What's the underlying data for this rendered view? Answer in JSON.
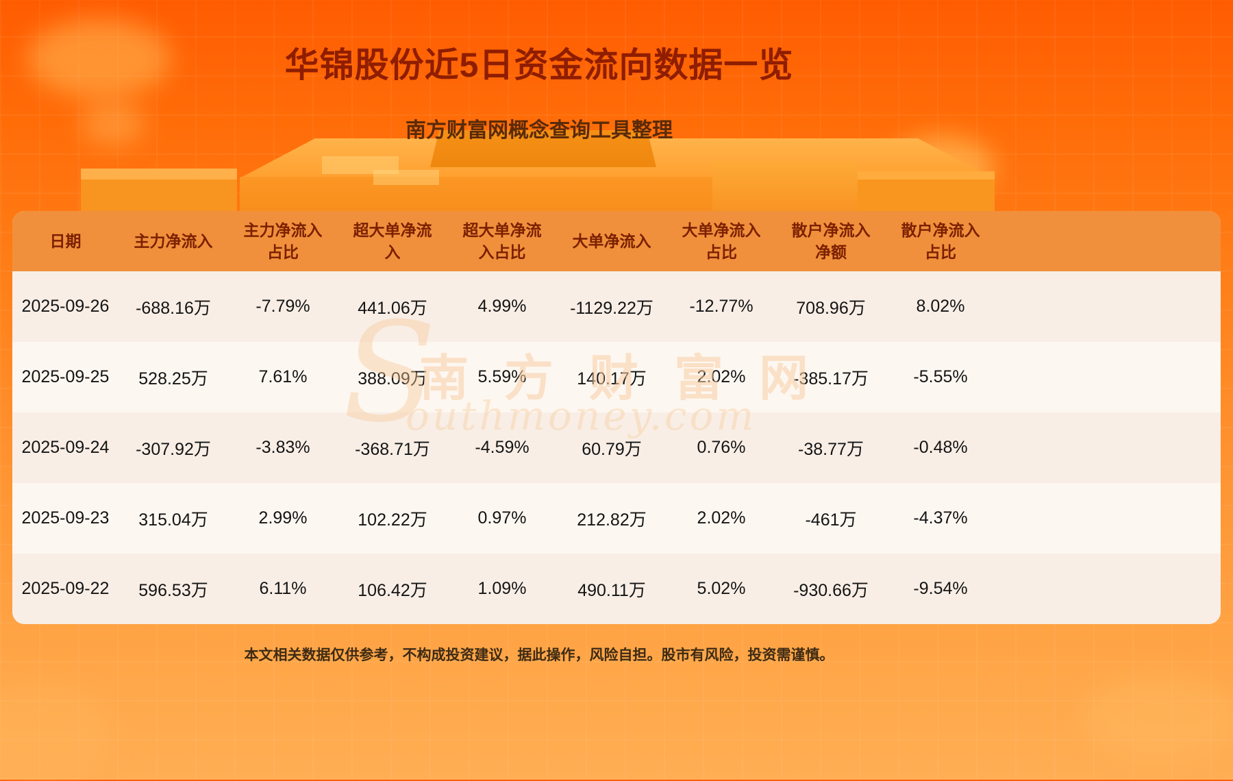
{
  "page": {
    "title": "华锦股份近5日资金流向数据一览",
    "subtitle": "南方财富网概念查询工具整理",
    "disclaimer": "本文相关数据仅供参考，不构成投资建议，据此操作，风险自担。股市有风险，投资需谨慎。"
  },
  "watermark": {
    "initial": "S",
    "cn": "南 方 财 富 网",
    "en": "outhmoney.com"
  },
  "colors": {
    "background_top": "#ff5c02",
    "background_bottom": "#ffae54",
    "title_text": "#8f1d00",
    "table_header_bg": "#f1903c",
    "table_header_text": "#7b2000",
    "row_odd": "#f8eee6",
    "row_even": "#fdf7f1",
    "body_text": "#141414"
  },
  "chart_data": {
    "type": "table",
    "title": "华锦股份近5日资金流向数据一览",
    "columns": [
      "日期",
      "主力净流入",
      "主力净流入占比",
      "超大单净流入",
      "超大单净流入占比",
      "大单净流入",
      "大单净流入占比",
      "散户净流入净额",
      "散户净流入占比"
    ],
    "rows": [
      [
        "2025-09-26",
        "-688.16万",
        "-7.79%",
        "441.06万",
        "4.99%",
        "-1129.22万",
        "-12.77%",
        "708.96万",
        "8.02%"
      ],
      [
        "2025-09-25",
        "528.25万",
        "7.61%",
        "388.09万",
        "5.59%",
        "140.17万",
        "2.02%",
        "-385.17万",
        "-5.55%"
      ],
      [
        "2025-09-24",
        "-307.92万",
        "-3.83%",
        "-368.71万",
        "-4.59%",
        "60.79万",
        "0.76%",
        "-38.77万",
        "-0.48%"
      ],
      [
        "2025-09-23",
        "315.04万",
        "2.99%",
        "102.22万",
        "0.97%",
        "212.82万",
        "2.02%",
        "-461万",
        "-4.37%"
      ],
      [
        "2025-09-22",
        "596.53万",
        "6.11%",
        "106.42万",
        "1.09%",
        "490.11万",
        "5.02%",
        "-930.66万",
        "-9.54%"
      ]
    ]
  }
}
